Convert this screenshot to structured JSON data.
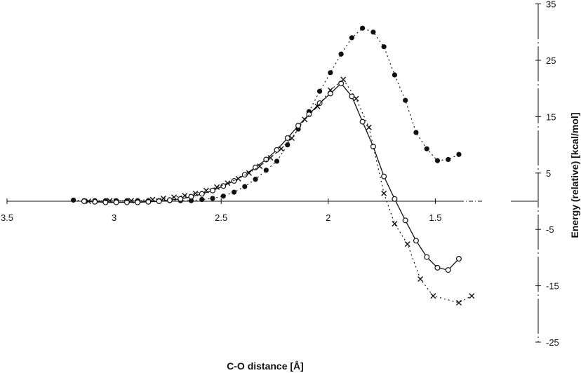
{
  "chart_data": {
    "type": "line",
    "title": "",
    "xlabel": "C-O distance [Å]",
    "ylabel": "Energy (relative) [kcal/mol]",
    "xlim": [
      3.5,
      1.3
    ],
    "x_reversed": true,
    "ylim": [
      -25,
      35
    ],
    "x_ticks": [
      "3.5",
      "3",
      "2.5",
      "2",
      "1.5"
    ],
    "x_tick_values": [
      3.5,
      3,
      2.5,
      2,
      1.5
    ],
    "y_ticks": [
      "35",
      "25",
      "15",
      "5",
      "-5",
      "-15",
      "-25"
    ],
    "y_tick_values": [
      35,
      25,
      15,
      5,
      -5,
      -15,
      -25
    ],
    "y_axis_position": "right",
    "grid": false,
    "legend": null,
    "series": [
      {
        "name": "filled circles",
        "marker": "filled-circle",
        "line": "dotted",
        "points": [
          [
            3.19,
            0.2
          ],
          [
            3.14,
            0.1
          ],
          [
            3.09,
            0.1
          ],
          [
            3.04,
            0.1
          ],
          [
            2.99,
            0.1
          ],
          [
            2.94,
            0.1
          ],
          [
            2.89,
            0.1
          ],
          [
            2.84,
            0.1
          ],
          [
            2.79,
            0.1
          ],
          [
            2.74,
            0.1
          ],
          [
            2.69,
            0.1
          ],
          [
            2.64,
            0.1
          ],
          [
            2.59,
            0.3
          ],
          [
            2.54,
            0.5
          ],
          [
            2.49,
            0.9
          ],
          [
            2.44,
            1.6
          ],
          [
            2.39,
            2.6
          ],
          [
            2.34,
            3.9
          ],
          [
            2.29,
            5.5
          ],
          [
            2.24,
            7.1
          ],
          [
            2.19,
            10.0
          ],
          [
            2.14,
            12.8
          ],
          [
            2.09,
            15.9
          ],
          [
            2.04,
            19.5
          ],
          [
            1.99,
            22.8
          ],
          [
            1.94,
            26.1
          ],
          [
            1.89,
            29.0
          ],
          [
            1.84,
            30.7
          ],
          [
            1.79,
            30.0
          ],
          [
            1.74,
            27.4
          ],
          [
            1.69,
            22.4
          ],
          [
            1.64,
            17.9
          ],
          [
            1.59,
            12.2
          ],
          [
            1.54,
            9.3
          ],
          [
            1.49,
            7.2
          ],
          [
            1.44,
            7.4
          ],
          [
            1.39,
            8.3
          ]
        ]
      },
      {
        "name": "open circles",
        "marker": "open-circle",
        "line": "solid",
        "points": [
          [
            3.14,
            0
          ],
          [
            3.09,
            -0.1
          ],
          [
            3.04,
            -0.2
          ],
          [
            2.99,
            -0.2
          ],
          [
            2.94,
            -0.2
          ],
          [
            2.89,
            -0.2
          ],
          [
            2.84,
            -0.1
          ],
          [
            2.79,
            0
          ],
          [
            2.74,
            0.2
          ],
          [
            2.69,
            0.4
          ],
          [
            2.64,
            0.8
          ],
          [
            2.59,
            1.3
          ],
          [
            2.54,
            1.9
          ],
          [
            2.49,
            2.7
          ],
          [
            2.44,
            3.6
          ],
          [
            2.39,
            4.7
          ],
          [
            2.34,
            6.0
          ],
          [
            2.29,
            7.4
          ],
          [
            2.24,
            9.1
          ],
          [
            2.19,
            11.2
          ],
          [
            2.14,
            13.4
          ],
          [
            2.09,
            15.4
          ],
          [
            2.04,
            17.4
          ],
          [
            1.99,
            19.1
          ],
          [
            1.94,
            20.9
          ],
          [
            1.89,
            18.6
          ],
          [
            1.84,
            14.1
          ],
          [
            1.79,
            9.7
          ],
          [
            1.74,
            4.4
          ],
          [
            1.69,
            0.4
          ],
          [
            1.64,
            -3.4
          ],
          [
            1.59,
            -7.0
          ],
          [
            1.54,
            -9.9
          ],
          [
            1.49,
            -11.8
          ],
          [
            1.44,
            -12.2
          ],
          [
            1.39,
            -10.2
          ]
        ]
      },
      {
        "name": "crosses",
        "marker": "cross",
        "line": "dotted",
        "points": [
          [
            3.12,
            0
          ],
          [
            3.02,
            0.1
          ],
          [
            2.92,
            0.1
          ],
          [
            2.82,
            0.3
          ],
          [
            2.77,
            0.5
          ],
          [
            2.72,
            0.7
          ],
          [
            2.67,
            1.0
          ],
          [
            2.62,
            1.4
          ],
          [
            2.57,
            1.9
          ],
          [
            2.52,
            2.5
          ],
          [
            2.47,
            3.2
          ],
          [
            2.42,
            4.0
          ],
          [
            2.37,
            5.0
          ],
          [
            2.32,
            6.2
          ],
          [
            2.27,
            7.7
          ],
          [
            2.22,
            9.3
          ],
          [
            2.17,
            11.2
          ],
          [
            2.11,
            14.5
          ],
          [
            2.05,
            16.8
          ],
          [
            1.99,
            19.7
          ],
          [
            1.93,
            21.6
          ],
          [
            1.87,
            18.2
          ],
          [
            1.81,
            13.1
          ],
          [
            1.74,
            1.4
          ],
          [
            1.69,
            -4.0
          ],
          [
            1.63,
            -7.6
          ],
          [
            1.57,
            -13.8
          ],
          [
            1.51,
            -16.8
          ],
          [
            1.39,
            -18.0
          ],
          [
            1.33,
            -16.8
          ]
        ]
      }
    ]
  }
}
